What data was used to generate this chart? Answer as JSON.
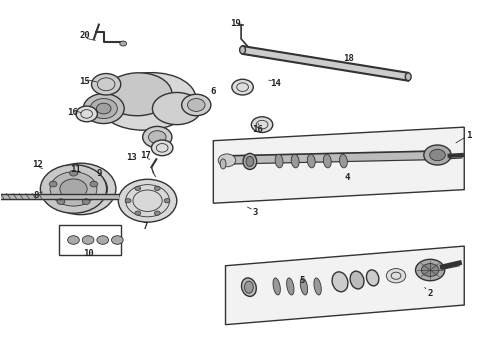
{
  "background_color": "#ffffff",
  "line_color": "#333333",
  "label_color": "#222222",
  "fig_width": 4.9,
  "fig_height": 3.6,
  "dpi": 100
}
